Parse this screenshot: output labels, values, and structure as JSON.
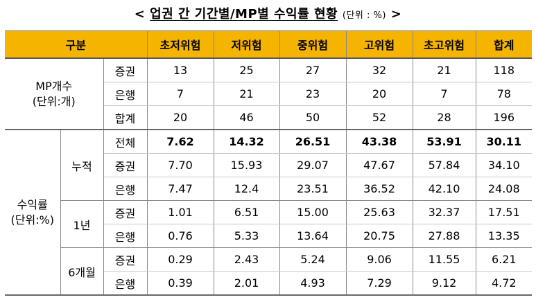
{
  "title": {
    "lt": "<",
    "main": "업권 간 기간별/MP별 수익률 현황",
    "unit": "(단위 : %)",
    "gt": ">"
  },
  "table": {
    "header": {
      "group": "구분",
      "cols": [
        "초저위험",
        "저위험",
        "중위험",
        "고위험",
        "초고위험",
        "합계"
      ]
    },
    "mp_section": {
      "label_line1": "MP개수",
      "label_line2": "(단위:개)",
      "rows": [
        {
          "sub": "증권",
          "values": [
            "13",
            "25",
            "27",
            "32",
            "21",
            "118"
          ]
        },
        {
          "sub": "은행",
          "values": [
            "7",
            "21",
            "23",
            "20",
            "7",
            "78"
          ]
        },
        {
          "sub": "합계",
          "values": [
            "20",
            "46",
            "50",
            "52",
            "28",
            "196"
          ]
        }
      ]
    },
    "return_section": {
      "label_line1": "수익률",
      "label_line2": "(단위:%)",
      "cumulative": {
        "label": "누적",
        "rows": [
          {
            "sub": "전체",
            "values": [
              "7.62",
              "14.32",
              "26.51",
              "43.38",
              "53.91",
              "30.11"
            ]
          },
          {
            "sub": "증권",
            "values": [
              "7.70",
              "15.93",
              "29.07",
              "47.67",
              "57.84",
              "34.10"
            ]
          },
          {
            "sub": "은행",
            "values": [
              "7.47",
              "12.4",
              "23.51",
              "36.52",
              "42.10",
              "24.08"
            ]
          }
        ]
      },
      "one_year": {
        "label": "1년",
        "rows": [
          {
            "sub": "증권",
            "values": [
              "1.01",
              "6.51",
              "15.00",
              "25.63",
              "32.37",
              "17.51"
            ]
          },
          {
            "sub": "은행",
            "values": [
              "0.76",
              "5.33",
              "13.64",
              "20.75",
              "27.88",
              "13.35"
            ]
          }
        ]
      },
      "six_month": {
        "label": "6개월",
        "rows": [
          {
            "sub": "증권",
            "values": [
              "0.29",
              "2.43",
              "5.24",
              "9.06",
              "11.55",
              "6.21"
            ]
          },
          {
            "sub": "은행",
            "values": [
              "0.39",
              "2.01",
              "4.93",
              "7.29",
              "9.12",
              "4.72"
            ]
          }
        ]
      }
    }
  },
  "colors": {
    "header_bg": "#f5b400"
  }
}
